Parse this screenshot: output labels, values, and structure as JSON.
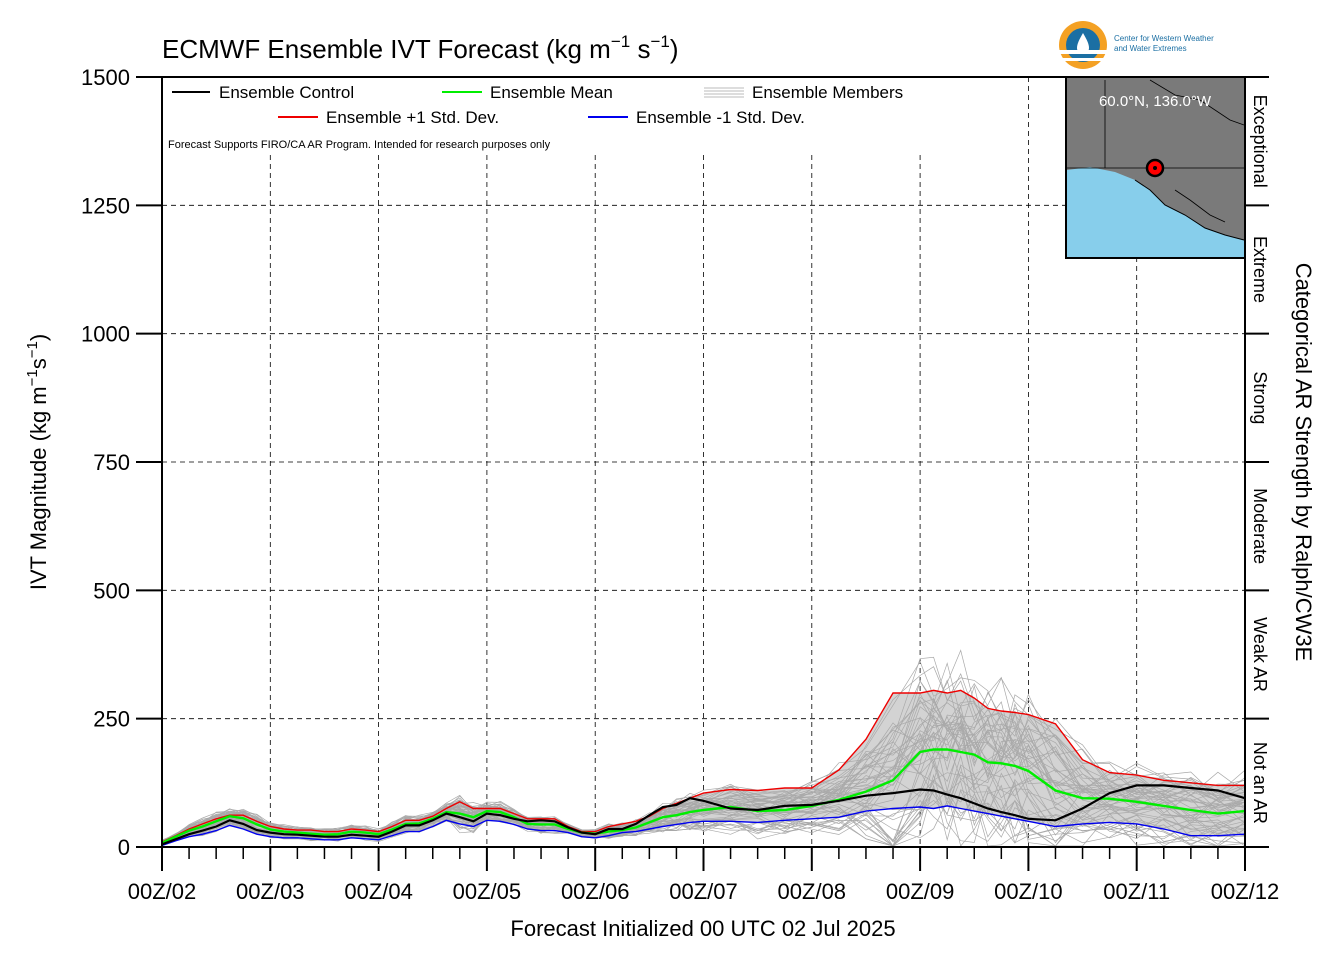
{
  "title": "ECMWF Ensemble IVT Forecast (kg m",
  "title_exp1": "−1",
  "title_mid": " s",
  "title_exp2": "−1",
  "title_end": ")",
  "ylabel": "IVT Magnitude (kg m",
  "ylabel_exp1": "−1",
  "ylabel_mid": "s",
  "ylabel_exp2": "−1",
  "ylabel_end": ")",
  "xlabel": "Forecast Initialized 00 UTC 02 Jul 2025",
  "right_axis_label": "Categorical AR Strength by Ralph/CW3E",
  "note": "Forecast Supports FIRO/CA AR Program. Intended for research purposes only",
  "logo": {
    "line1": "Center for Western Weather",
    "line2": "and Water Extremes",
    "icon": "cw3e-logo-icon"
  },
  "inset_map": {
    "label": "60.0°N, 136.0°W",
    "ocean_color": "#87ceeb",
    "land_color": "#7a7a7a"
  },
  "legend": [
    {
      "label": "Ensemble Control",
      "color": "#000000"
    },
    {
      "label": "Ensemble Mean",
      "color": "#00ee00"
    },
    {
      "label": "Ensemble Members",
      "color": "#bbbbbb"
    },
    {
      "label": "Ensemble +1 Std. Dev.",
      "color": "#ee0000"
    },
    {
      "label": "Ensemble -1 Std. Dev.",
      "color": "#0000ee"
    }
  ],
  "categories": [
    {
      "label": "Not an AR",
      "range": [
        0,
        250
      ]
    },
    {
      "label": "Weak AR",
      "range": [
        250,
        500
      ]
    },
    {
      "label": "Moderate",
      "range": [
        500,
        750
      ]
    },
    {
      "label": "Strong",
      "range": [
        750,
        1000
      ]
    },
    {
      "label": "Extreme",
      "range": [
        1000,
        1250
      ]
    },
    {
      "label": "Exceptional",
      "range": [
        1250,
        1500
      ]
    }
  ],
  "chart_data": {
    "type": "line",
    "title": "ECMWF Ensemble IVT Forecast (kg m-1 s-1)",
    "xlabel": "Forecast Initialized 00 UTC 02 Jul 2025",
    "ylabel": "IVT Magnitude (kg m-1s-1)",
    "ylim": [
      0,
      1500
    ],
    "xlim_days": [
      0,
      10
    ],
    "x_ticks": [
      "00Z/02",
      "00Z/03",
      "00Z/04",
      "00Z/05",
      "00Z/06",
      "00Z/07",
      "00Z/08",
      "00Z/09",
      "00Z/10",
      "00Z/11",
      "00Z/12"
    ],
    "y_ticks": [
      0,
      250,
      500,
      750,
      1000,
      1250,
      1500
    ],
    "grid": true,
    "legend_position": "top-left",
    "x_days": [
      0,
      0.125,
      0.25,
      0.375,
      0.5,
      0.625,
      0.75,
      0.875,
      1,
      1.125,
      1.25,
      1.375,
      1.5,
      1.625,
      1.75,
      1.875,
      2,
      2.125,
      2.25,
      2.375,
      2.5,
      2.625,
      2.75,
      2.875,
      3,
      3.125,
      3.25,
      3.375,
      3.5,
      3.625,
      3.75,
      3.875,
      4,
      4.125,
      4.25,
      4.375,
      4.5,
      4.625,
      4.75,
      4.875,
      5,
      5.25,
      5.5,
      5.75,
      6,
      6.25,
      6.5,
      6.75,
      7,
      7.125,
      7.25,
      7.375,
      7.5,
      7.625,
      7.75,
      7.875,
      8,
      8.25,
      8.5,
      8.75,
      9,
      9.25,
      9.5,
      9.75,
      10
    ],
    "series": [
      {
        "name": "Ensemble Control",
        "color": "#000000",
        "values": [
          5,
          15,
          25,
          32,
          40,
          52,
          45,
          33,
          28,
          25,
          24,
          22,
          20,
          20,
          24,
          22,
          20,
          30,
          42,
          42,
          52,
          65,
          58,
          50,
          65,
          62,
          55,
          50,
          52,
          50,
          38,
          28,
          25,
          35,
          35,
          45,
          62,
          78,
          82,
          95,
          90,
          75,
          72,
          80,
          82,
          90,
          100,
          105,
          112,
          110,
          102,
          95,
          85,
          75,
          68,
          62,
          55,
          52,
          75,
          105,
          120,
          120,
          115,
          110,
          95
        ]
      },
      {
        "name": "Ensemble Mean",
        "color": "#00ee00",
        "values": [
          8,
          20,
          32,
          40,
          50,
          60,
          56,
          44,
          34,
          30,
          28,
          26,
          24,
          25,
          30,
          28,
          25,
          34,
          45,
          46,
          55,
          68,
          65,
          58,
          70,
          68,
          58,
          45,
          44,
          44,
          35,
          28,
          26,
          30,
          33,
          38,
          48,
          58,
          62,
          68,
          72,
          78,
          70,
          72,
          80,
          92,
          108,
          130,
          185,
          190,
          190,
          185,
          180,
          165,
          163,
          158,
          148,
          110,
          95,
          94,
          88,
          80,
          72,
          65,
          70
        ]
      },
      {
        "name": "Ensemble +1 Std. Dev.",
        "color": "#ee0000",
        "values": [
          10,
          22,
          35,
          45,
          55,
          62,
          62,
          50,
          40,
          35,
          33,
          33,
          30,
          30,
          35,
          33,
          30,
          40,
          52,
          52,
          60,
          75,
          88,
          75,
          75,
          75,
          65,
          55,
          55,
          55,
          40,
          30,
          30,
          40,
          45,
          50,
          60,
          75,
          85,
          95,
          105,
          112,
          110,
          115,
          115,
          150,
          210,
          300,
          300,
          305,
          300,
          305,
          290,
          270,
          265,
          262,
          258,
          240,
          170,
          145,
          140,
          130,
          125,
          120,
          120
        ]
      },
      {
        "name": "Ensemble -1 Std. Dev.",
        "color": "#0000ee",
        "values": [
          3,
          12,
          20,
          25,
          32,
          42,
          35,
          25,
          20,
          18,
          18,
          16,
          14,
          14,
          18,
          16,
          14,
          22,
          30,
          30,
          40,
          52,
          45,
          40,
          52,
          50,
          44,
          35,
          32,
          32,
          28,
          20,
          18,
          22,
          28,
          30,
          35,
          40,
          44,
          48,
          50,
          50,
          48,
          52,
          55,
          58,
          70,
          75,
          78,
          75,
          80,
          75,
          70,
          65,
          60,
          55,
          50,
          40,
          45,
          48,
          45,
          35,
          22,
          22,
          25
        ]
      }
    ],
    "members_note": "Ensemble Members: about 50 gray traces spread around the mean, peaking near 490 around 00Z/09 to 00Z/10"
  }
}
